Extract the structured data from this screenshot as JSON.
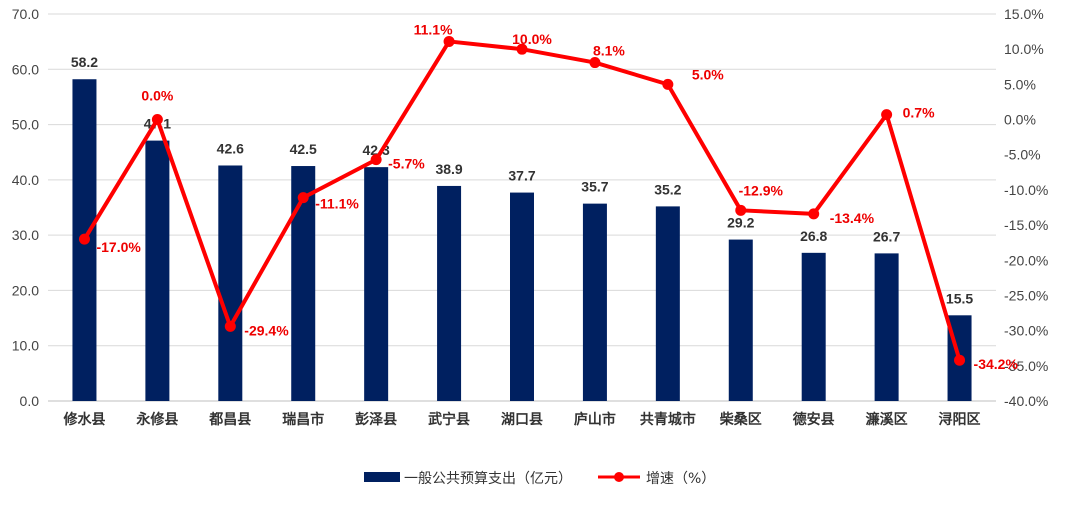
{
  "chart_data": {
    "type": "bar",
    "categories": [
      "修水县",
      "永修县",
      "都昌县",
      "瑞昌市",
      "彭泽县",
      "武宁县",
      "湖口县",
      "庐山市",
      "共青城市",
      "柴桑区",
      "德安县",
      "濂溪区",
      "浔阳区"
    ],
    "series": [
      {
        "name": "一般公共预算支出（亿元）",
        "type": "bar",
        "axis": "left",
        "color": "#002060",
        "values": [
          58.2,
          47.1,
          42.6,
          42.5,
          42.3,
          38.9,
          37.7,
          35.7,
          35.2,
          29.2,
          26.8,
          26.7,
          15.5
        ],
        "labels": [
          "58.2",
          "47.1",
          "42.6",
          "42.5",
          "42.3",
          "38.9",
          "37.7",
          "35.7",
          "35.2",
          "29.2",
          "26.8",
          "26.7",
          "15.5"
        ]
      },
      {
        "name": "增速（%）",
        "type": "line",
        "axis": "right",
        "color": "#ff0000",
        "values": [
          -17.0,
          0.0,
          -29.4,
          -11.1,
          -5.7,
          11.1,
          10.0,
          8.1,
          5.0,
          -12.9,
          -13.4,
          0.7,
          -34.2
        ],
        "labels": [
          "-17.0%",
          "0.0%",
          "-29.4%",
          "-11.1%",
          "-5.7%",
          "11.1%",
          "10.0%",
          "8.1%",
          "5.0%",
          "-12.9%",
          "-13.4%",
          "0.7%",
          "-34.2%"
        ]
      }
    ],
    "y_left": {
      "min": 0,
      "max": 70,
      "ticks": [
        0,
        10,
        20,
        30,
        40,
        50,
        60,
        70
      ],
      "tick_labels": [
        "0.0",
        "10.0",
        "20.0",
        "30.0",
        "40.0",
        "50.0",
        "60.0",
        "70.0"
      ]
    },
    "y_right": {
      "min": -40,
      "max": 15,
      "ticks": [
        -40,
        -35,
        -30,
        -25,
        -20,
        -15,
        -10,
        -5,
        0,
        5,
        10,
        15
      ],
      "tick_labels": [
        "-40.0%",
        "-35.0%",
        "-30.0%",
        "-25.0%",
        "-20.0%",
        "-15.0%",
        "-10.0%",
        "-5.0%",
        "0.0%",
        "5.0%",
        "10.0%",
        "15.0%"
      ]
    },
    "grid": true,
    "legend_position": "bottom",
    "title": "",
    "xlabel": "",
    "ylabel": ""
  }
}
